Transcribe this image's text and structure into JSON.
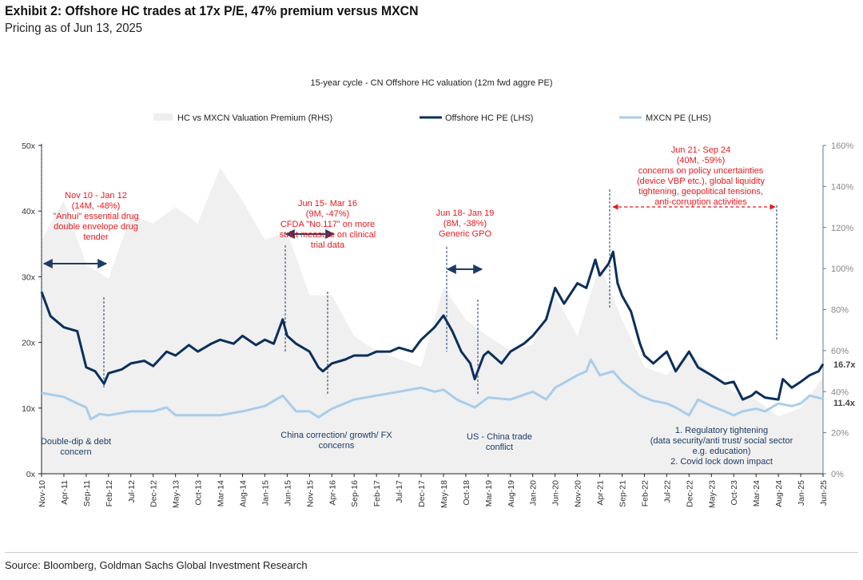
{
  "header": {
    "title": "Exhibit 2: Offshore HC trades at 17x P/E, 47% premium versus MXCN",
    "subtitle": "Pricing as of Jun 13, 2025"
  },
  "footer": {
    "source": "Source: Bloomberg, Goldman Sachs Global Investment Research"
  },
  "colors": {
    "hc": "#0b2f5b",
    "mxcn": "#a9cdea",
    "premium": "#f0f0f0",
    "annotation_red": "#e8191e",
    "annotation_blue": "#1d3b66"
  },
  "chart_data": {
    "type": "line",
    "title": "15-year cycle - CN Offshore HC valuation (12m fwd aggre PE)",
    "legend": [
      "HC vs MXCN Valuation Premium (RHS)",
      "Offshore HC PE (LHS)",
      "MXCN  PE (LHS)"
    ],
    "legend_position": "top",
    "x_unit": "months since Nov-10",
    "x_range": [
      0,
      175
    ],
    "x_tick_labels": [
      "Nov-10",
      "Apr-11",
      "Sep-11",
      "Feb-12",
      "Jul-12",
      "Dec-12",
      "May-13",
      "Oct-13",
      "Mar-14",
      "Aug-14",
      "Jan-15",
      "Jun-15",
      "Nov-15",
      "Apr-16",
      "Sep-16",
      "Feb-17",
      "Jul-17",
      "Dec-17",
      "May-18",
      "Oct-18",
      "Mar-19",
      "Aug-19",
      "Jan-20",
      "Jun-20",
      "Nov-20",
      "Apr-21",
      "Sep-21",
      "Feb-22",
      "Jul-22",
      "Dec-22",
      "May-23",
      "Oct-23",
      "Mar-24",
      "Aug-24",
      "Jan-25",
      "Jun-25"
    ],
    "y_left": {
      "range": [
        0,
        50
      ],
      "ticks": [
        "0x",
        "10x",
        "20x",
        "30x",
        "40x",
        "50x"
      ]
    },
    "y_right": {
      "range": [
        0,
        160
      ],
      "ticks": [
        "0%",
        "20%",
        "40%",
        "60%",
        "80%",
        "100%",
        "120%",
        "140%",
        "160%"
      ]
    },
    "series": [
      {
        "name": "Offshore HC PE (LHS)",
        "axis": "left",
        "points": [
          [
            0,
            27.7
          ],
          [
            2,
            24
          ],
          [
            5,
            22.3
          ],
          [
            8,
            21.7
          ],
          [
            10,
            16.2
          ],
          [
            12,
            15.6
          ],
          [
            14,
            13.7
          ],
          [
            15,
            15.3
          ],
          [
            18,
            15.9
          ],
          [
            20,
            16.8
          ],
          [
            23,
            17.2
          ],
          [
            25,
            16.4
          ],
          [
            28,
            18.6
          ],
          [
            30,
            18
          ],
          [
            33,
            19.6
          ],
          [
            35,
            18.6
          ],
          [
            38,
            19.8
          ],
          [
            40,
            20.4
          ],
          [
            43,
            19.8
          ],
          [
            45,
            21
          ],
          [
            48,
            19.6
          ],
          [
            50,
            20.4
          ],
          [
            52,
            19.8
          ],
          [
            54,
            23.5
          ],
          [
            55,
            21
          ],
          [
            57,
            19.8
          ],
          [
            60,
            18.6
          ],
          [
            62,
            16.2
          ],
          [
            63,
            15.6
          ],
          [
            65,
            16.8
          ],
          [
            68,
            17.4
          ],
          [
            70,
            18
          ],
          [
            73,
            18
          ],
          [
            75,
            18.6
          ],
          [
            78,
            18.6
          ],
          [
            80,
            19.2
          ],
          [
            83,
            18.6
          ],
          [
            85,
            20.4
          ],
          [
            88,
            22.3
          ],
          [
            90,
            24.1
          ],
          [
            92,
            21.7
          ],
          [
            94,
            18.6
          ],
          [
            96,
            16.8
          ],
          [
            97,
            14.4
          ],
          [
            99,
            18
          ],
          [
            100,
            18.6
          ],
          [
            103,
            16.8
          ],
          [
            105,
            18.6
          ],
          [
            108,
            19.8
          ],
          [
            110,
            21
          ],
          [
            113,
            23.5
          ],
          [
            115,
            28.3
          ],
          [
            117,
            25.9
          ],
          [
            120,
            29
          ],
          [
            122,
            28.3
          ],
          [
            124,
            32.6
          ],
          [
            125,
            30.2
          ],
          [
            127,
            32
          ],
          [
            128,
            33.8
          ],
          [
            129,
            29
          ],
          [
            130,
            27.1
          ],
          [
            132,
            24.7
          ],
          [
            134,
            19.8
          ],
          [
            135,
            18
          ],
          [
            137,
            16.8
          ],
          [
            140,
            18.6
          ],
          [
            142,
            15.6
          ],
          [
            145,
            18.6
          ],
          [
            147,
            16.2
          ],
          [
            150,
            15
          ],
          [
            153,
            13.7
          ],
          [
            155,
            14
          ],
          [
            157,
            11.3
          ],
          [
            159,
            11.9
          ],
          [
            160,
            12.5
          ],
          [
            162,
            11.6
          ],
          [
            165,
            11.3
          ],
          [
            166,
            14.4
          ],
          [
            168,
            13.1
          ],
          [
            170,
            14
          ],
          [
            172,
            15
          ],
          [
            174,
            15.6
          ],
          [
            175,
            16.7
          ]
        ]
      },
      {
        "name": "MXCN  PE (LHS)",
        "axis": "left",
        "points": [
          [
            0,
            12.3
          ],
          [
            5,
            11.7
          ],
          [
            8,
            10.7
          ],
          [
            10,
            10.1
          ],
          [
            11,
            8.3
          ],
          [
            13,
            9.1
          ],
          [
            15,
            8.9
          ],
          [
            20,
            9.5
          ],
          [
            25,
            9.5
          ],
          [
            28,
            10.1
          ],
          [
            30,
            8.9
          ],
          [
            35,
            8.9
          ],
          [
            40,
            8.9
          ],
          [
            45,
            9.5
          ],
          [
            50,
            10.3
          ],
          [
            54,
            11.9
          ],
          [
            57,
            9.5
          ],
          [
            60,
            9.5
          ],
          [
            62,
            8.6
          ],
          [
            65,
            9.9
          ],
          [
            70,
            11.3
          ],
          [
            75,
            11.9
          ],
          [
            80,
            12.5
          ],
          [
            85,
            13.1
          ],
          [
            88,
            12.5
          ],
          [
            90,
            12.8
          ],
          [
            93,
            11.3
          ],
          [
            97,
            10.1
          ],
          [
            100,
            11.6
          ],
          [
            105,
            11.3
          ],
          [
            110,
            12.5
          ],
          [
            113,
            11.3
          ],
          [
            115,
            13.1
          ],
          [
            120,
            15
          ],
          [
            122,
            15.6
          ],
          [
            123,
            17.4
          ],
          [
            125,
            15
          ],
          [
            128,
            15.6
          ],
          [
            130,
            14
          ],
          [
            134,
            11.9
          ],
          [
            137,
            11.1
          ],
          [
            140,
            10.7
          ],
          [
            142,
            10.1
          ],
          [
            145,
            8.9
          ],
          [
            147,
            11.3
          ],
          [
            150,
            10.3
          ],
          [
            153,
            9.5
          ],
          [
            155,
            8.9
          ],
          [
            157,
            9.5
          ],
          [
            160,
            9.9
          ],
          [
            162,
            9.5
          ],
          [
            165,
            10.7
          ],
          [
            168,
            10.3
          ],
          [
            170,
            10.7
          ],
          [
            172,
            11.9
          ],
          [
            175,
            11.4
          ]
        ]
      },
      {
        "name": "HC vs MXCN Valuation Premium (RHS)",
        "axis": "right",
        "type": "area",
        "points": [
          [
            0,
            114
          ],
          [
            5,
            133
          ],
          [
            10,
            102
          ],
          [
            15,
            95
          ],
          [
            20,
            126
          ],
          [
            25,
            122
          ],
          [
            30,
            130
          ],
          [
            35,
            122
          ],
          [
            40,
            149
          ],
          [
            45,
            133
          ],
          [
            50,
            114
          ],
          [
            55,
            118
          ],
          [
            60,
            87
          ],
          [
            65,
            87
          ],
          [
            70,
            67
          ],
          [
            75,
            60
          ],
          [
            80,
            56
          ],
          [
            85,
            52
          ],
          [
            90,
            91
          ],
          [
            95,
            75
          ],
          [
            100,
            67
          ],
          [
            105,
            60
          ],
          [
            110,
            63
          ],
          [
            115,
            87
          ],
          [
            120,
            67
          ],
          [
            125,
            102
          ],
          [
            130,
            75
          ],
          [
            135,
            52
          ],
          [
            140,
            48
          ],
          [
            145,
            60
          ],
          [
            150,
            48
          ],
          [
            155,
            40
          ],
          [
            160,
            36
          ],
          [
            165,
            28
          ],
          [
            170,
            32
          ],
          [
            175,
            47
          ]
        ]
      }
    ],
    "end_labels": {
      "hc": "16.7x",
      "mxcn": "11.4x"
    },
    "annotations_red": [
      {
        "lines": [
          "Nov 10 - Jan 12",
          "(14M, -48%)",
          "\"Anhui\" essential drug",
          "double envelope drug",
          "tender"
        ]
      },
      {
        "lines": [
          "Jun 15- Mar 16",
          "(9M, -47%)",
          "CFDA \"No.117\" on more",
          "strict measure on clinical",
          "trial data"
        ]
      },
      {
        "lines": [
          "Jun 18- Jan 19",
          "(8M, -38%)",
          "Generic GPO"
        ]
      },
      {
        "lines": [
          "Jun 21- Sep 24",
          "(40M, -59%)",
          "concerns on policy uncertainties",
          "(device VBP etc.), global liquidity",
          "tightening, geopolitical tensions,",
          "anti-corruption activities"
        ]
      }
    ],
    "annotations_blue": [
      {
        "lines": [
          "Double-dip & debt",
          "concern"
        ]
      },
      {
        "lines": [
          "China correction/ growth/ FX",
          "concerns"
        ]
      },
      {
        "lines": [
          "US - China trade",
          "conflict"
        ]
      },
      {
        "lines": [
          "1. Regulatory tightening",
          "(data security/anti trust/ social sector",
          "e.g. education)",
          "2. Covid lock down impact"
        ]
      }
    ]
  }
}
